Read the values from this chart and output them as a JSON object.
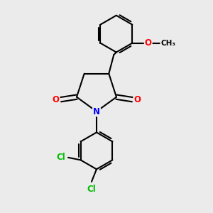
{
  "background_color": "#ebebeb",
  "bond_color": "#000000",
  "bond_width": 1.5,
  "N_color": "#0000ff",
  "O_color": "#ff0000",
  "Cl_color": "#00bb00",
  "font_size_atoms": 8.5,
  "fig_size": [
    3.0,
    3.0
  ],
  "dpi": 100,
  "methoxy_label": "O",
  "methyl_label": "CH₃",
  "N_label": "N",
  "Cl_label": "Cl"
}
